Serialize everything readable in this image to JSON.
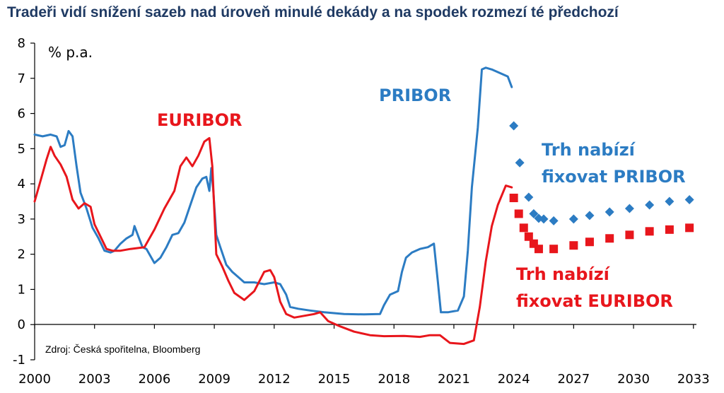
{
  "chart_data": {
    "type": "line",
    "title": "Tradeři vidí snížení sazeb nad úroveň minulé dekády a na spodek rozmezí té předchozí",
    "ylabel": "% p.a.",
    "source": "Zdroj: Česká spořitelna, Bloomberg",
    "xlim": [
      2000,
      2034
    ],
    "ylim": [
      -1,
      8
    ],
    "x_ticks": [
      "2000",
      "2003",
      "2006",
      "2009",
      "2012",
      "2015",
      "2018",
      "2021",
      "2024",
      "2027",
      "2030",
      "2033"
    ],
    "y_ticks": [
      "-1",
      "0",
      "1",
      "2",
      "3",
      "4",
      "5",
      "6",
      "7",
      "8"
    ],
    "grid": false,
    "annotations": [
      {
        "text": "PRIBOR",
        "color": "#2c7cc3"
      },
      {
        "text": "EURIBOR",
        "color": "#e8161c"
      },
      {
        "lines": [
          "Trh nabízí",
          "fixovat PRIBOR"
        ],
        "color": "#2c7cc3"
      },
      {
        "lines": [
          "Trh nabízí",
          "fixovat EURIBOR"
        ],
        "color": "#e8161c"
      }
    ],
    "series": [
      {
        "name": "PRIBOR",
        "color": "#2c7cc3",
        "style": "line",
        "points": [
          [
            2000.0,
            5.4
          ],
          [
            2000.4,
            5.35
          ],
          [
            2000.8,
            5.4
          ],
          [
            2001.1,
            5.35
          ],
          [
            2001.3,
            5.05
          ],
          [
            2001.5,
            5.1
          ],
          [
            2001.7,
            5.5
          ],
          [
            2001.9,
            5.35
          ],
          [
            2002.1,
            4.5
          ],
          [
            2002.3,
            3.75
          ],
          [
            2002.6,
            3.3
          ],
          [
            2002.9,
            2.75
          ],
          [
            2003.2,
            2.45
          ],
          [
            2003.5,
            2.1
          ],
          [
            2003.8,
            2.05
          ],
          [
            2004.0,
            2.1
          ],
          [
            2004.3,
            2.3
          ],
          [
            2004.6,
            2.45
          ],
          [
            2004.9,
            2.55
          ],
          [
            2005.0,
            2.8
          ],
          [
            2005.2,
            2.5
          ],
          [
            2005.4,
            2.2
          ],
          [
            2005.6,
            2.15
          ],
          [
            2005.8,
            1.95
          ],
          [
            2006.0,
            1.75
          ],
          [
            2006.3,
            1.9
          ],
          [
            2006.6,
            2.2
          ],
          [
            2006.9,
            2.55
          ],
          [
            2007.2,
            2.6
          ],
          [
            2007.5,
            2.9
          ],
          [
            2007.8,
            3.4
          ],
          [
            2008.1,
            3.9
          ],
          [
            2008.4,
            4.15
          ],
          [
            2008.6,
            4.2
          ],
          [
            2008.75,
            3.8
          ],
          [
            2008.85,
            4.45
          ],
          [
            2008.95,
            3.8
          ],
          [
            2009.1,
            2.55
          ],
          [
            2009.3,
            2.2
          ],
          [
            2009.6,
            1.7
          ],
          [
            2009.9,
            1.5
          ],
          [
            2010.2,
            1.35
          ],
          [
            2010.5,
            1.2
          ],
          [
            2011.0,
            1.2
          ],
          [
            2011.5,
            1.15
          ],
          [
            2012.0,
            1.2
          ],
          [
            2012.3,
            1.15
          ],
          [
            2012.6,
            0.85
          ],
          [
            2012.8,
            0.5
          ],
          [
            2013.2,
            0.45
          ],
          [
            2013.8,
            0.4
          ],
          [
            2014.5,
            0.35
          ],
          [
            2015.5,
            0.3
          ],
          [
            2016.5,
            0.29
          ],
          [
            2017.3,
            0.3
          ],
          [
            2017.5,
            0.55
          ],
          [
            2017.8,
            0.85
          ],
          [
            2018.2,
            0.95
          ],
          [
            2018.4,
            1.5
          ],
          [
            2018.6,
            1.9
          ],
          [
            2018.9,
            2.05
          ],
          [
            2019.3,
            2.15
          ],
          [
            2019.7,
            2.2
          ],
          [
            2020.0,
            2.3
          ],
          [
            2020.2,
            1.2
          ],
          [
            2020.35,
            0.35
          ],
          [
            2020.7,
            0.35
          ],
          [
            2021.2,
            0.4
          ],
          [
            2021.5,
            0.8
          ],
          [
            2021.7,
            2.1
          ],
          [
            2021.9,
            3.9
          ],
          [
            2022.2,
            5.6
          ],
          [
            2022.4,
            7.25
          ],
          [
            2022.6,
            7.3
          ],
          [
            2022.9,
            7.25
          ],
          [
            2023.3,
            7.15
          ],
          [
            2023.7,
            7.05
          ],
          [
            2023.9,
            6.75
          ]
        ]
      },
      {
        "name": "EURIBOR",
        "color": "#e8161c",
        "style": "line",
        "points": [
          [
            2000.0,
            3.5
          ],
          [
            2000.3,
            4.1
          ],
          [
            2000.6,
            4.7
          ],
          [
            2000.8,
            5.05
          ],
          [
            2001.0,
            4.8
          ],
          [
            2001.3,
            4.55
          ],
          [
            2001.6,
            4.2
          ],
          [
            2001.9,
            3.55
          ],
          [
            2002.2,
            3.3
          ],
          [
            2002.5,
            3.45
          ],
          [
            2002.8,
            3.35
          ],
          [
            2003.0,
            2.85
          ],
          [
            2003.3,
            2.5
          ],
          [
            2003.6,
            2.15
          ],
          [
            2003.9,
            2.1
          ],
          [
            2004.3,
            2.1
          ],
          [
            2004.8,
            2.15
          ],
          [
            2005.5,
            2.2
          ],
          [
            2006.0,
            2.7
          ],
          [
            2006.5,
            3.3
          ],
          [
            2007.0,
            3.8
          ],
          [
            2007.3,
            4.5
          ],
          [
            2007.6,
            4.75
          ],
          [
            2007.9,
            4.5
          ],
          [
            2008.2,
            4.8
          ],
          [
            2008.5,
            5.2
          ],
          [
            2008.75,
            5.3
          ],
          [
            2008.9,
            4.5
          ],
          [
            2009.1,
            2.0
          ],
          [
            2009.4,
            1.65
          ],
          [
            2009.7,
            1.25
          ],
          [
            2010.0,
            0.9
          ],
          [
            2010.5,
            0.7
          ],
          [
            2011.0,
            0.95
          ],
          [
            2011.5,
            1.5
          ],
          [
            2011.8,
            1.55
          ],
          [
            2012.0,
            1.35
          ],
          [
            2012.3,
            0.65
          ],
          [
            2012.6,
            0.3
          ],
          [
            2013.0,
            0.2
          ],
          [
            2013.5,
            0.25
          ],
          [
            2014.0,
            0.3
          ],
          [
            2014.3,
            0.35
          ],
          [
            2014.7,
            0.1
          ],
          [
            2015.3,
            -0.05
          ],
          [
            2016.0,
            -0.2
          ],
          [
            2016.8,
            -0.3
          ],
          [
            2017.5,
            -0.33
          ],
          [
            2018.5,
            -0.32
          ],
          [
            2019.3,
            -0.35
          ],
          [
            2019.8,
            -0.3
          ],
          [
            2020.3,
            -0.3
          ],
          [
            2020.8,
            -0.52
          ],
          [
            2021.5,
            -0.55
          ],
          [
            2022.0,
            -0.45
          ],
          [
            2022.3,
            0.5
          ],
          [
            2022.6,
            1.8
          ],
          [
            2022.9,
            2.8
          ],
          [
            2023.2,
            3.4
          ],
          [
            2023.6,
            3.95
          ],
          [
            2023.9,
            3.9
          ]
        ]
      },
      {
        "name": "Trh nabízí fixovat PRIBOR",
        "color": "#2c7cc3",
        "style": "diamond",
        "points": [
          [
            2024.0,
            5.65
          ],
          [
            2024.3,
            4.6
          ],
          [
            2024.75,
            3.62
          ],
          [
            2025.0,
            3.15
          ],
          [
            2025.25,
            3.02
          ],
          [
            2025.5,
            3.0
          ],
          [
            2026.0,
            2.95
          ],
          [
            2027.0,
            3.0
          ],
          [
            2027.8,
            3.1
          ],
          [
            2028.8,
            3.2
          ],
          [
            2029.8,
            3.3
          ],
          [
            2030.8,
            3.4
          ],
          [
            2031.8,
            3.5
          ],
          [
            2032.8,
            3.55
          ]
        ]
      },
      {
        "name": "Trh nabízí fixovat EURIBOR",
        "color": "#e8161c",
        "style": "square",
        "points": [
          [
            2024.0,
            3.6
          ],
          [
            2024.25,
            3.15
          ],
          [
            2024.5,
            2.75
          ],
          [
            2024.75,
            2.5
          ],
          [
            2025.0,
            2.3
          ],
          [
            2025.25,
            2.15
          ],
          [
            2026.0,
            2.15
          ],
          [
            2027.0,
            2.25
          ],
          [
            2027.8,
            2.35
          ],
          [
            2028.8,
            2.45
          ],
          [
            2029.8,
            2.55
          ],
          [
            2030.8,
            2.65
          ],
          [
            2031.8,
            2.7
          ],
          [
            2032.8,
            2.75
          ]
        ]
      }
    ]
  }
}
